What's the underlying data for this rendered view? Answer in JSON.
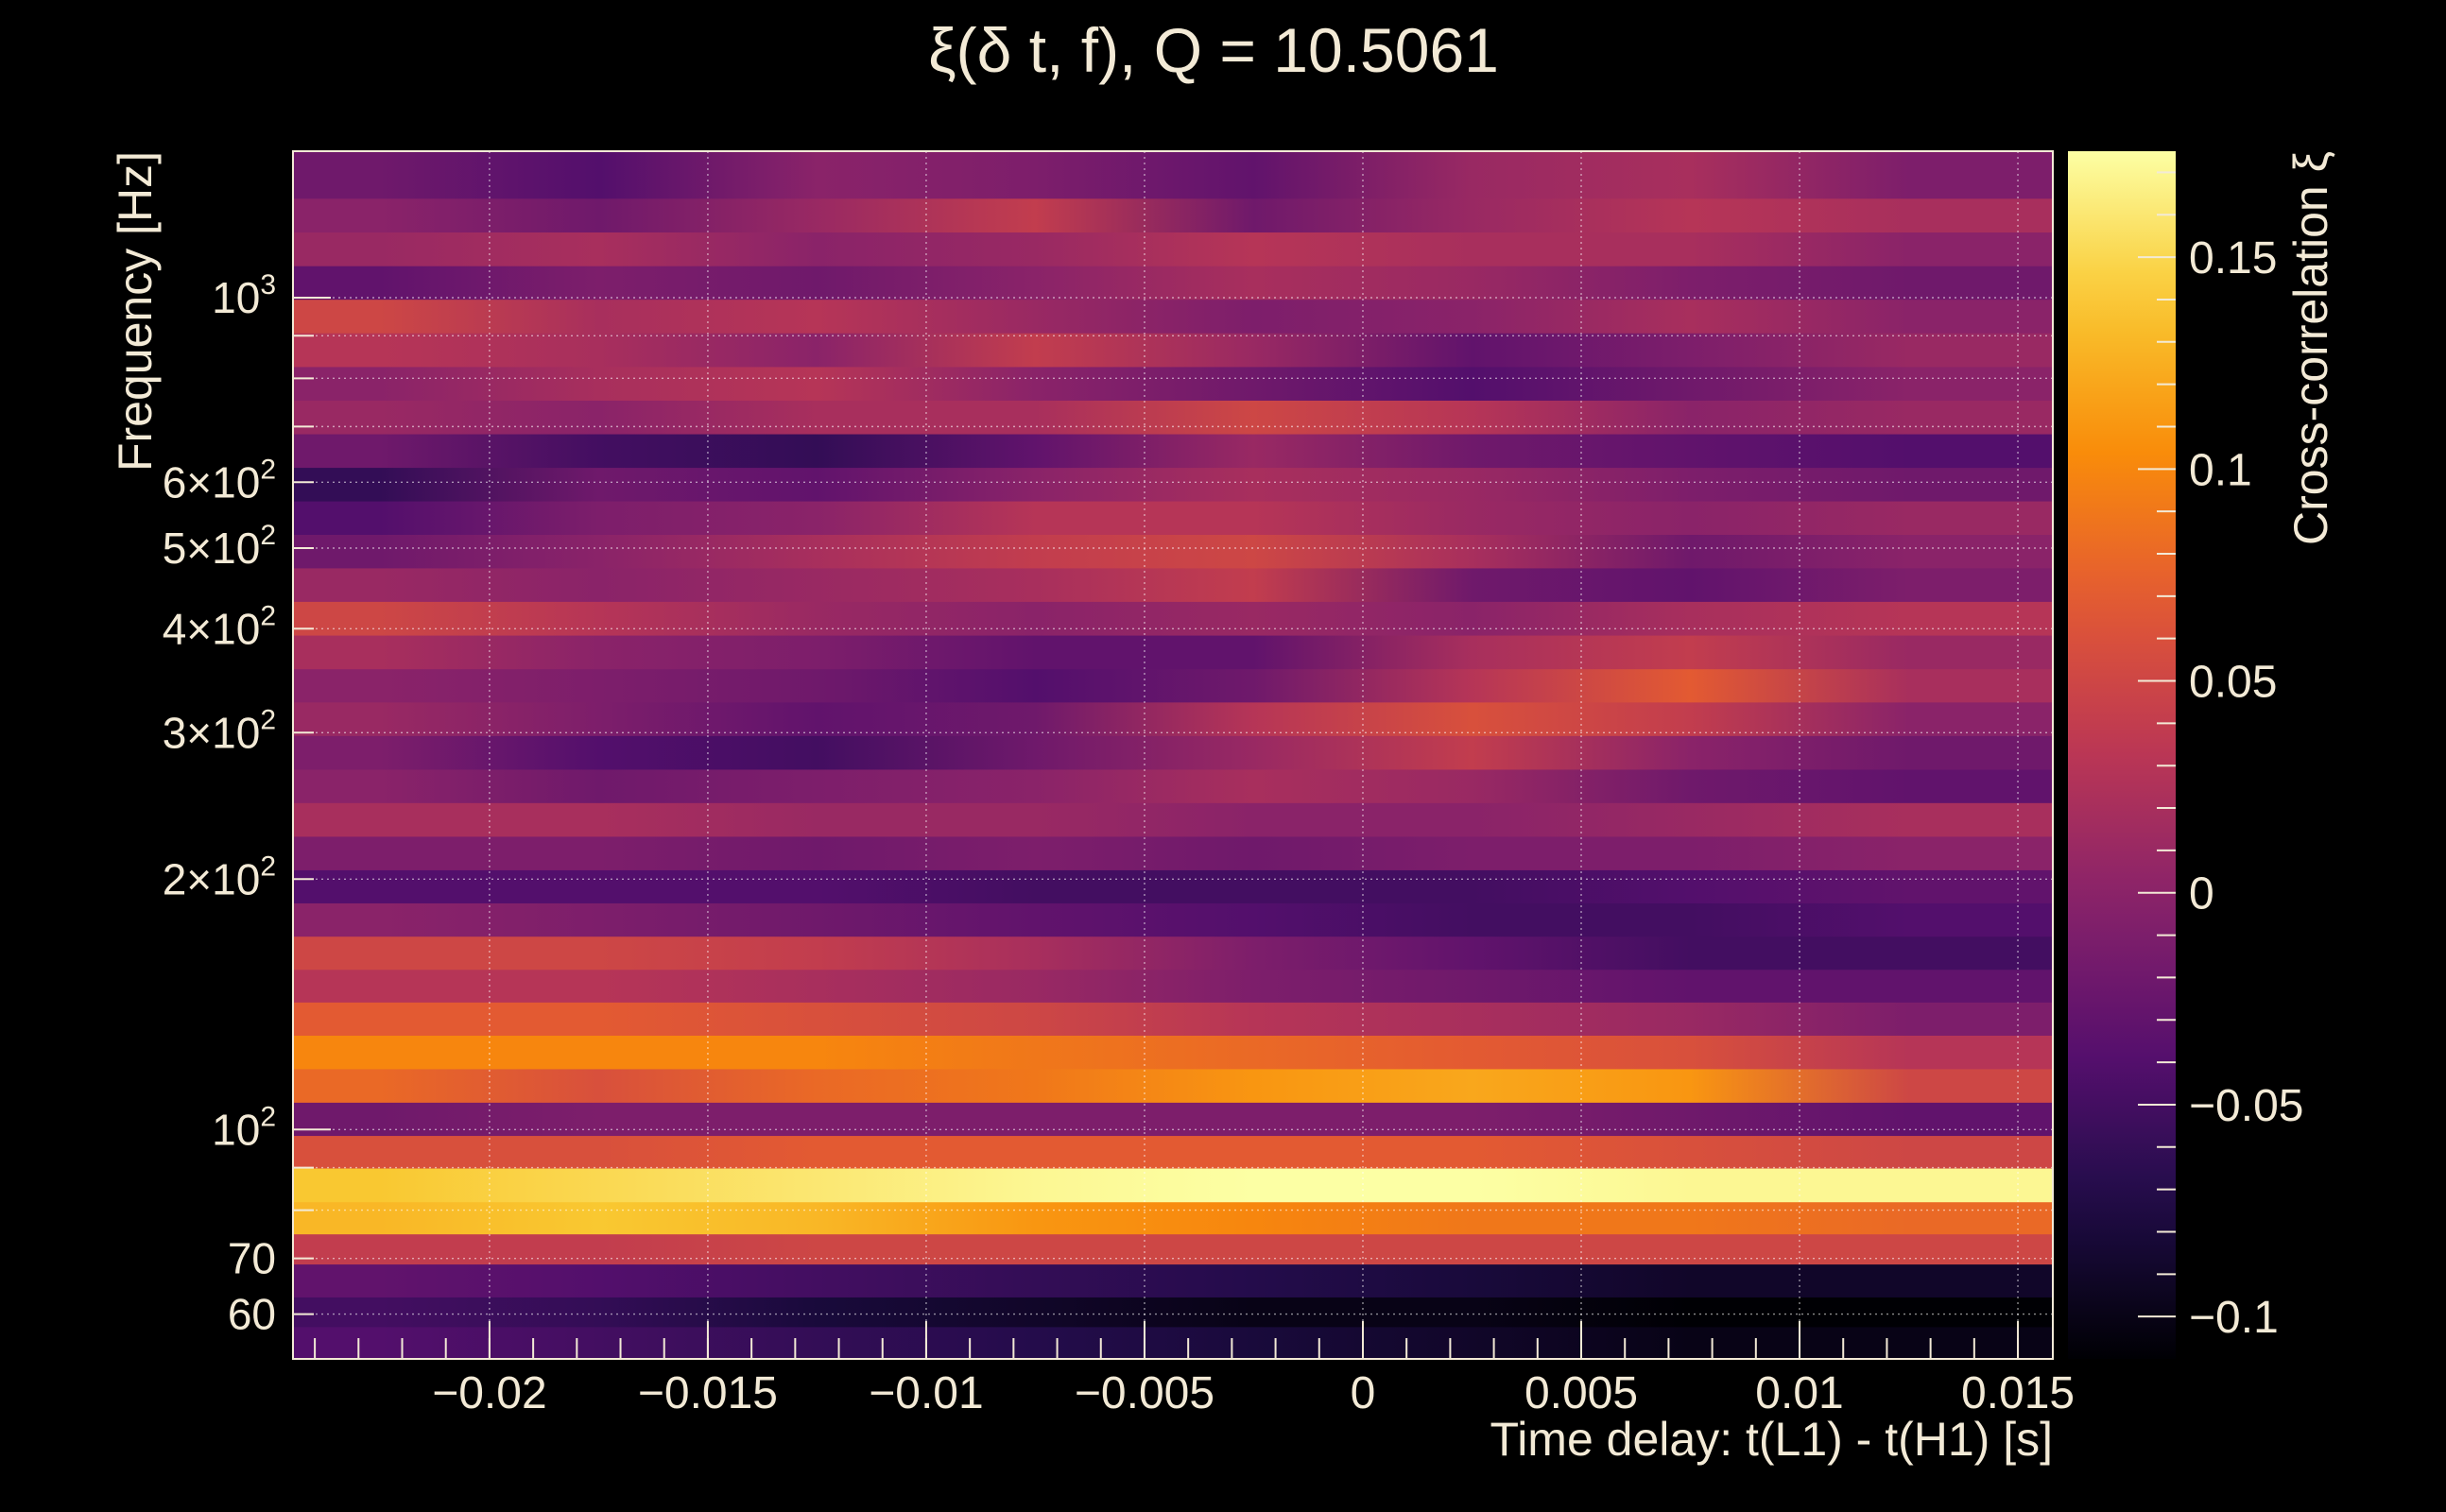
{
  "chart_data": {
    "type": "heatmap",
    "title": "ξ(δ t, f), Q = 10.5061",
    "xlabel": "Time delay: t(L1) - t(H1) [s]",
    "ylabel": "Frequency [Hz]",
    "colorbar_label": "Cross-correlation ξ",
    "xlim": [
      -0.0245,
      0.0158
    ],
    "ylim": [
      53,
      1500
    ],
    "y_scale": "log",
    "grid": true,
    "colormap": "inferno",
    "x_ticks": [
      {
        "value": -0.02,
        "label": "−0.02"
      },
      {
        "value": -0.015,
        "label": "−0.015"
      },
      {
        "value": -0.01,
        "label": "−0.01"
      },
      {
        "value": -0.005,
        "label": "−0.005"
      },
      {
        "value": 0,
        "label": "0"
      },
      {
        "value": 0.005,
        "label": "0.005"
      },
      {
        "value": 0.01,
        "label": "0.01"
      },
      {
        "value": 0.015,
        "label": "0.015"
      }
    ],
    "y_ticks": [
      {
        "value": 60,
        "label": "60"
      },
      {
        "value": 70,
        "label": "70"
      },
      {
        "value": 100,
        "base": "10",
        "exp": "2"
      },
      {
        "value": 200,
        "base": "2×10",
        "exp": "2"
      },
      {
        "value": 300,
        "base": "3×10",
        "exp": "2"
      },
      {
        "value": 400,
        "base": "4×10",
        "exp": "2"
      },
      {
        "value": 500,
        "base": "5×10",
        "exp": "2"
      },
      {
        "value": 600,
        "base": "6×10",
        "exp": "2"
      },
      {
        "value": 1000,
        "base": "10",
        "exp": "3"
      }
    ],
    "colorbar_range": [
      -0.11,
      0.175
    ],
    "colorbar_ticks": [
      {
        "value": 0.15,
        "label": "0.15"
      },
      {
        "value": 0.1,
        "label": "0.1"
      },
      {
        "value": 0.05,
        "label": "0.05"
      },
      {
        "value": 0,
        "label": "0"
      },
      {
        "value": -0.05,
        "label": "−0.05"
      },
      {
        "value": -0.1,
        "label": "−0.1"
      }
    ],
    "x_centers": [
      -0.0225,
      -0.0175,
      -0.0125,
      -0.0075,
      -0.0025,
      0.0025,
      0.0075,
      0.0125
    ],
    "rows": [
      {
        "f": 56,
        "values": [
          -0.04,
          -0.05,
          -0.06,
          -0.07,
          -0.08,
          -0.09,
          -0.1,
          -0.1
        ]
      },
      {
        "f": 60,
        "values": [
          -0.05,
          -0.06,
          -0.08,
          -0.09,
          -0.1,
          -0.1,
          -0.11,
          -0.11
        ]
      },
      {
        "f": 66,
        "values": [
          -0.03,
          -0.04,
          -0.05,
          -0.06,
          -0.07,
          -0.08,
          -0.09,
          -0.09
        ]
      },
      {
        "f": 72,
        "values": [
          0.04,
          0.04,
          0.05,
          0.05,
          0.05,
          0.05,
          0.05,
          0.05
        ]
      },
      {
        "f": 78,
        "values": [
          0.13,
          0.14,
          0.13,
          0.11,
          0.1,
          0.09,
          0.09,
          0.08
        ]
      },
      {
        "f": 86,
        "values": [
          0.14,
          0.15,
          0.16,
          0.17,
          0.175,
          0.175,
          0.17,
          0.17
        ]
      },
      {
        "f": 94,
        "values": [
          0.06,
          0.06,
          0.07,
          0.07,
          0.07,
          0.07,
          0.06,
          0.05
        ]
      },
      {
        "f": 103,
        "values": [
          -0.02,
          -0.01,
          -0.01,
          -0.01,
          -0.01,
          -0.01,
          -0.02,
          -0.03
        ]
      },
      {
        "f": 113,
        "values": [
          0.08,
          0.06,
          0.08,
          0.09,
          0.11,
          0.12,
          0.11,
          0.05
        ]
      },
      {
        "f": 124,
        "values": [
          0.1,
          0.1,
          0.1,
          0.09,
          0.08,
          0.07,
          0.06,
          0.03
        ]
      },
      {
        "f": 136,
        "values": [
          0.07,
          0.07,
          0.06,
          0.05,
          0.03,
          0.02,
          0.01,
          -0.01
        ]
      },
      {
        "f": 149,
        "values": [
          0.03,
          0.03,
          0.02,
          0.01,
          -0.01,
          -0.02,
          -0.03,
          -0.03
        ]
      },
      {
        "f": 163,
        "values": [
          0.05,
          0.05,
          0.04,
          0.02,
          -0.01,
          -0.03,
          -0.05,
          -0.05
        ]
      },
      {
        "f": 179,
        "values": [
          0.0,
          -0.01,
          -0.02,
          -0.03,
          -0.04,
          -0.05,
          -0.05,
          -0.04
        ]
      },
      {
        "f": 196,
        "values": [
          -0.04,
          -0.04,
          -0.04,
          -0.05,
          -0.05,
          -0.05,
          -0.04,
          -0.03
        ]
      },
      {
        "f": 215,
        "values": [
          -0.01,
          -0.01,
          -0.02,
          -0.01,
          -0.02,
          -0.01,
          -0.01,
          0.0
        ]
      },
      {
        "f": 236,
        "values": [
          0.02,
          0.02,
          0.01,
          0.01,
          0.0,
          0.0,
          0.01,
          0.02
        ]
      },
      {
        "f": 259,
        "values": [
          0.0,
          -0.02,
          -0.01,
          0.0,
          0.02,
          0.01,
          -0.02,
          -0.03
        ]
      },
      {
        "f": 284,
        "values": [
          -0.01,
          -0.04,
          -0.05,
          -0.02,
          0.01,
          0.04,
          0.0,
          -0.02
        ]
      },
      {
        "f": 312,
        "values": [
          0.01,
          -0.01,
          -0.03,
          -0.02,
          0.03,
          0.06,
          0.04,
          0.0
        ]
      },
      {
        "f": 342,
        "values": [
          0.0,
          -0.01,
          -0.02,
          -0.04,
          -0.02,
          0.03,
          0.07,
          0.02
        ]
      },
      {
        "f": 375,
        "values": [
          0.02,
          0.0,
          -0.01,
          -0.03,
          -0.03,
          0.02,
          0.04,
          0.01
        ]
      },
      {
        "f": 412,
        "values": [
          0.05,
          0.03,
          0.01,
          0.0,
          0.01,
          0.0,
          0.02,
          0.03
        ]
      },
      {
        "f": 452,
        "values": [
          0.01,
          0.0,
          0.01,
          0.02,
          0.04,
          -0.02,
          -0.03,
          -0.01
        ]
      },
      {
        "f": 496,
        "values": [
          -0.02,
          0.0,
          0.02,
          0.04,
          0.05,
          0.02,
          -0.02,
          0.0
        ]
      },
      {
        "f": 544,
        "values": [
          -0.04,
          -0.01,
          0.0,
          0.03,
          0.03,
          0.01,
          0.0,
          0.01
        ]
      },
      {
        "f": 597,
        "values": [
          -0.06,
          -0.02,
          -0.03,
          0.0,
          0.02,
          0.01,
          -0.01,
          -0.02
        ]
      },
      {
        "f": 655,
        "values": [
          -0.02,
          -0.05,
          -0.06,
          -0.03,
          0.01,
          -0.02,
          -0.03,
          -0.04
        ]
      },
      {
        "f": 719,
        "values": [
          0.01,
          0.0,
          0.02,
          0.02,
          0.05,
          0.03,
          0.0,
          0.01
        ]
      },
      {
        "f": 789,
        "values": [
          0.0,
          0.02,
          0.03,
          0.0,
          -0.02,
          -0.04,
          -0.02,
          0.0
        ]
      },
      {
        "f": 866,
        "values": [
          0.03,
          0.02,
          0.0,
          0.04,
          0.01,
          -0.03,
          -0.01,
          0.01
        ]
      },
      {
        "f": 951,
        "values": [
          0.05,
          0.02,
          0.03,
          0.01,
          -0.01,
          0.0,
          0.02,
          0.0
        ]
      },
      {
        "f": 1043,
        "values": [
          -0.03,
          -0.01,
          -0.02,
          0.0,
          0.02,
          0.01,
          -0.01,
          -0.02
        ]
      },
      {
        "f": 1145,
        "values": [
          0.01,
          0.02,
          0.0,
          0.01,
          0.03,
          0.02,
          0.02,
          0.0
        ]
      },
      {
        "f": 1257,
        "values": [
          0.0,
          -0.02,
          0.01,
          0.04,
          -0.02,
          0.01,
          0.03,
          0.02
        ]
      },
      {
        "f": 1380,
        "values": [
          -0.02,
          -0.04,
          0.0,
          -0.01,
          -0.03,
          0.01,
          0.02,
          -0.01
        ]
      }
    ]
  }
}
